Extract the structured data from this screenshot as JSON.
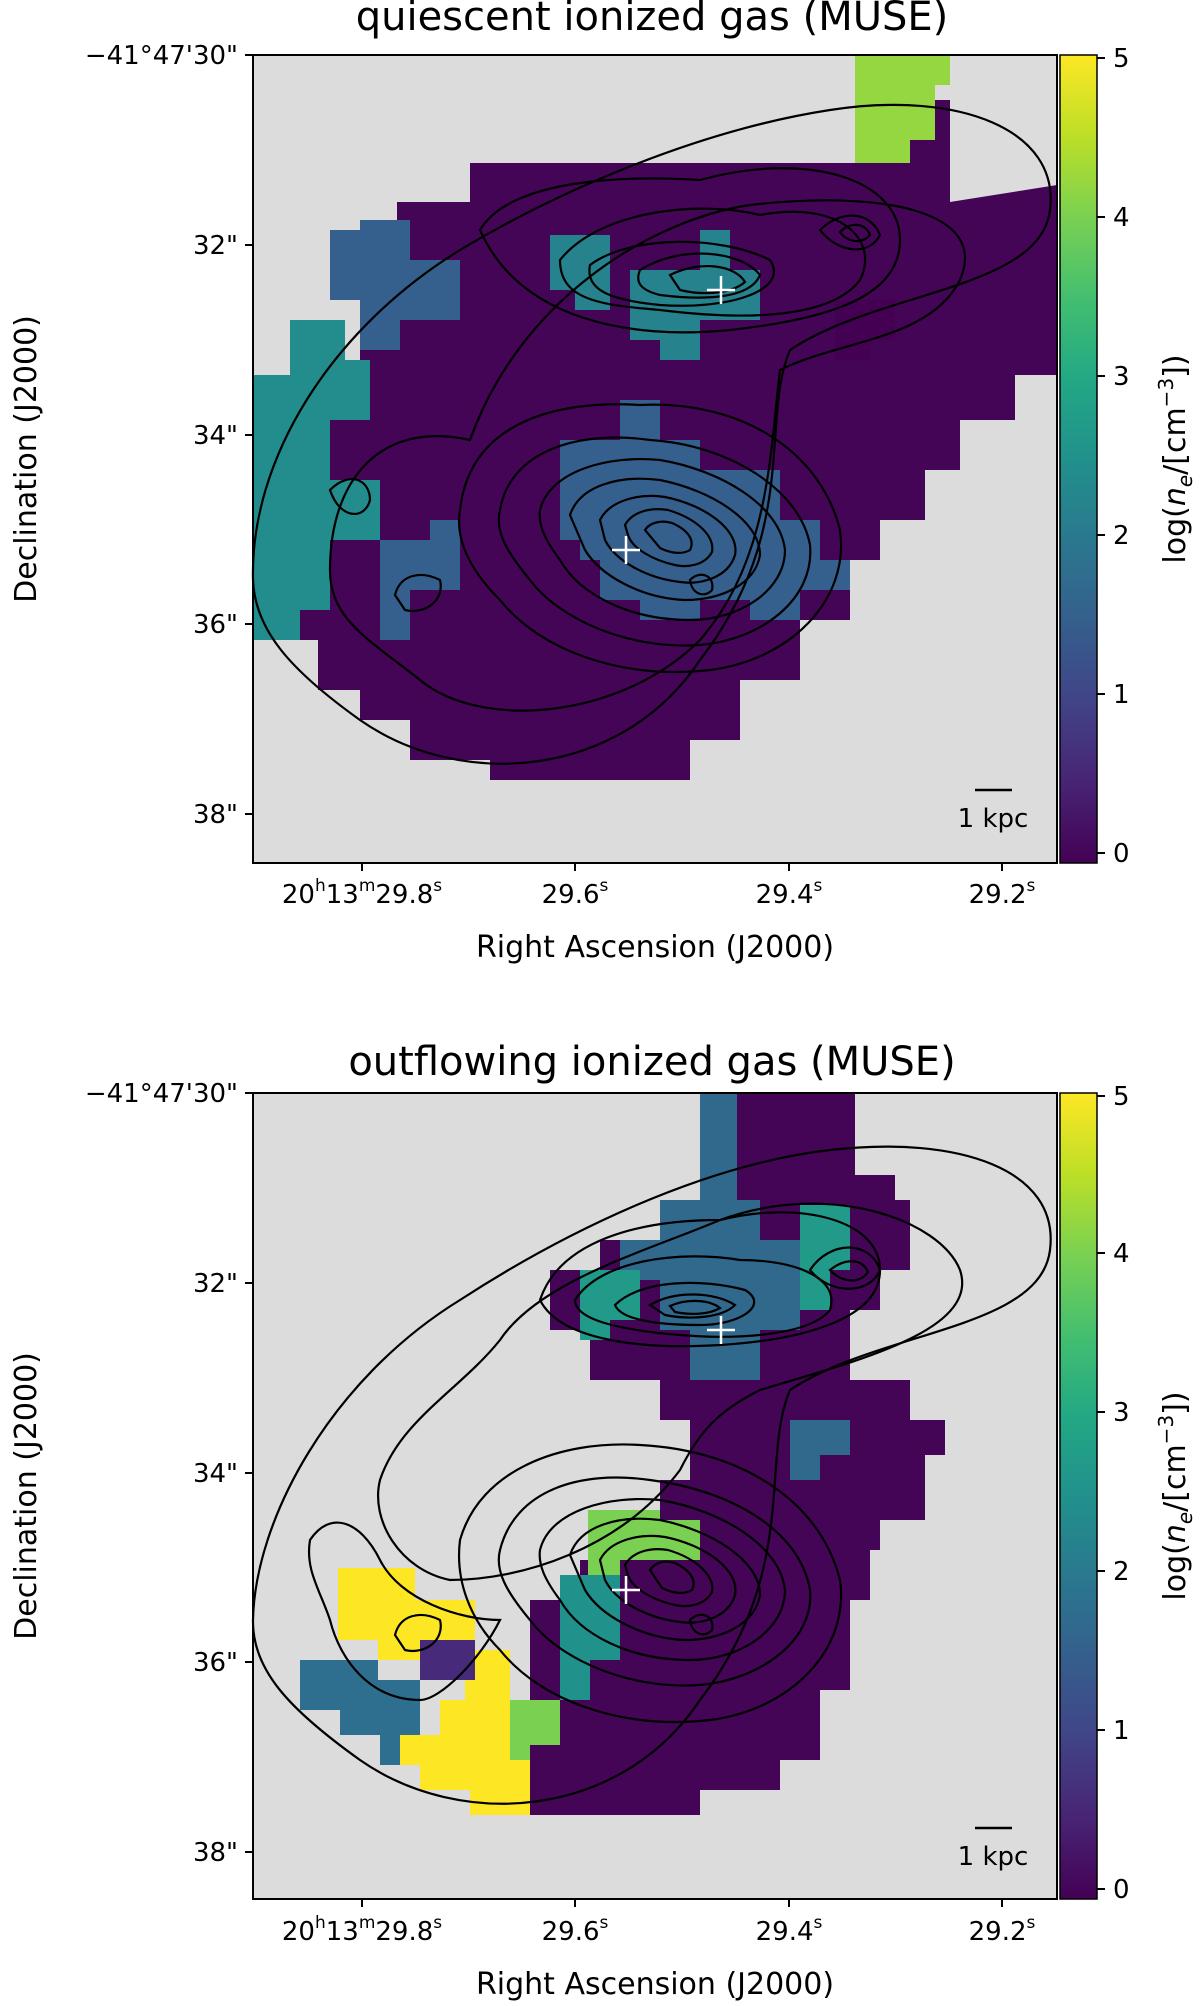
{
  "chart_data": [
    {
      "type": "heatmap",
      "title": "quiescent ionized gas (MUSE)",
      "xlabel": "Right Ascension (J2000)",
      "ylabel": "Declination (J2000)",
      "x_ticks": [
        {
          "ra_s": 29.8,
          "hours": "20",
          "h": "h",
          "minutes": "13",
          "m": "m",
          "sec": "29.8",
          "s": "s"
        },
        {
          "ra_s": 29.6,
          "hours": "",
          "h": "",
          "minutes": "",
          "m": "",
          "sec": "29.6",
          "s": "s"
        },
        {
          "ra_s": 29.4,
          "hours": "",
          "h": "",
          "minutes": "",
          "m": "",
          "sec": "29.4",
          "s": "s"
        },
        {
          "ra_s": 29.2,
          "hours": "",
          "h": "",
          "minutes": "",
          "m": "",
          "sec": "29.2",
          "s": "s"
        }
      ],
      "y_ticks": [
        {
          "dec_arcsec": 30,
          "label": "−41°47'30\""
        },
        {
          "dec_arcsec": 32,
          "label": "32\""
        },
        {
          "dec_arcsec": 34,
          "label": "34\""
        },
        {
          "dec_arcsec": 36,
          "label": "36\""
        },
        {
          "dec_arcsec": 38,
          "label": "38\""
        }
      ],
      "xlim_ra_s": [
        29.9,
        29.15
      ],
      "ylim_dec_arcsec": [
        30,
        38.5
      ],
      "colorbar": {
        "label": "log(n_e/[cm^-3])",
        "label_parts": {
          "pre": "log(",
          "n": "n",
          "sub": "e",
          "mid": "/[cm",
          "sup": "−3",
          "post": "])"
        },
        "min": 0,
        "max": 5,
        "ticks": [
          "0",
          "1",
          "2",
          "3",
          "4",
          "5"
        ],
        "colormap": "viridis"
      },
      "scalebar_label": "1 kpc",
      "nuclei_markers": [
        {
          "ra_s": 29.46,
          "dec_arcsec": 32.5
        },
        {
          "ra_s": 29.55,
          "dec_arcsec": 35.2
        }
      ],
      "regions": [
        {
          "value": 0.05,
          "description": "main body"
        },
        {
          "value": 2.4,
          "description": "western edge"
        },
        {
          "value": 1.5,
          "description": "southern nucleus area"
        },
        {
          "value": 4.2,
          "description": "north-east patch"
        },
        {
          "value": 2.2,
          "description": "northern nucleus area"
        }
      ]
    },
    {
      "type": "heatmap",
      "title": "outflowing ionized gas (MUSE)",
      "xlabel": "Right Ascension (J2000)",
      "ylabel": "Declination (J2000)",
      "x_ticks": [
        {
          "ra_s": 29.8,
          "hours": "20",
          "h": "h",
          "minutes": "13",
          "m": "m",
          "sec": "29.8",
          "s": "s"
        },
        {
          "ra_s": 29.6,
          "hours": "",
          "h": "",
          "minutes": "",
          "m": "",
          "sec": "29.6",
          "s": "s"
        },
        {
          "ra_s": 29.4,
          "hours": "",
          "h": "",
          "minutes": "",
          "m": "",
          "sec": "29.4",
          "s": "s"
        },
        {
          "ra_s": 29.2,
          "hours": "",
          "h": "",
          "minutes": "",
          "m": "",
          "sec": "29.2",
          "s": "s"
        }
      ],
      "y_ticks": [
        {
          "dec_arcsec": 30,
          "label": "−41°47'30\""
        },
        {
          "dec_arcsec": 32,
          "label": "32\""
        },
        {
          "dec_arcsec": 34,
          "label": "34\""
        },
        {
          "dec_arcsec": 36,
          "label": "36\""
        },
        {
          "dec_arcsec": 38,
          "label": "38\""
        }
      ],
      "xlim_ra_s": [
        29.9,
        29.15
      ],
      "ylim_dec_arcsec": [
        30,
        38.5
      ],
      "colorbar": {
        "label": "log(n_e/[cm^-3])",
        "label_parts": {
          "pre": "log(",
          "n": "n",
          "sub": "e",
          "mid": "/[cm",
          "sup": "−3",
          "post": "])"
        },
        "min": 0,
        "max": 5,
        "ticks": [
          "0",
          "1",
          "2",
          "3",
          "4",
          "5"
        ],
        "colormap": "viridis"
      },
      "scalebar_label": "1 kpc",
      "nuclei_markers": [
        {
          "ra_s": 29.46,
          "dec_arcsec": 32.5
        },
        {
          "ra_s": 29.55,
          "dec_arcsec": 35.2
        }
      ],
      "regions": [
        {
          "value": 0.05,
          "description": "main outflow body"
        },
        {
          "value": 1.7,
          "description": "northern nucleus outflow"
        },
        {
          "value": 2.7,
          "description": "north-west knot"
        },
        {
          "value": 5.0,
          "description": "south-west extension"
        },
        {
          "value": 1.8,
          "description": "south-west edge"
        },
        {
          "value": 4.0,
          "description": "near southern nucleus"
        },
        {
          "value": 0.6,
          "description": "small patch"
        },
        {
          "value": 2.5,
          "description": "teal strip"
        }
      ]
    }
  ]
}
